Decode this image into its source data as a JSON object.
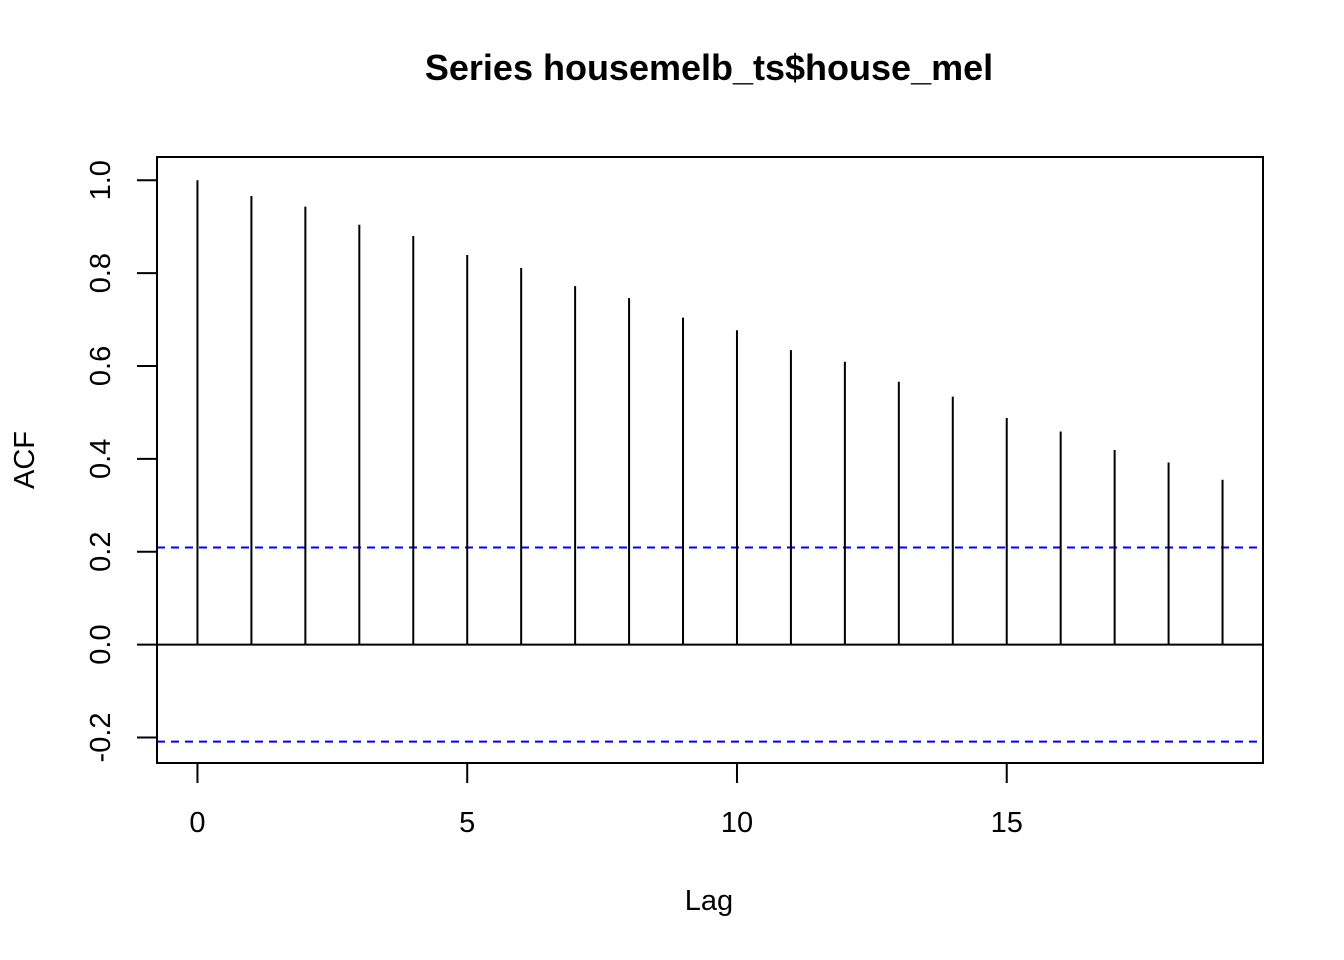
{
  "chart_data": {
    "type": "bar",
    "subtype": "acf-lollipop",
    "title": "Series  housemelb_ts$house_mel",
    "xlabel": "Lag",
    "ylabel": "ACF",
    "xlim": [
      -0.75,
      19.75
    ],
    "ylim": [
      -0.255,
      1.05
    ],
    "x_ticks": [
      0,
      5,
      10,
      15
    ],
    "x_tick_labels": [
      "0",
      "5",
      "10",
      "15"
    ],
    "y_ticks": [
      -0.2,
      0.0,
      0.2,
      0.4,
      0.6,
      0.8,
      1.0
    ],
    "y_tick_labels": [
      "-0.2",
      "0.0",
      "0.2",
      "0.4",
      "0.6",
      "0.8",
      "1.0"
    ],
    "lags": [
      0,
      1,
      2,
      3,
      4,
      5,
      6,
      7,
      8,
      9,
      10,
      11,
      12,
      13,
      14,
      15,
      16,
      17,
      18,
      19
    ],
    "values": [
      1.0,
      0.966,
      0.943,
      0.904,
      0.88,
      0.839,
      0.811,
      0.772,
      0.746,
      0.704,
      0.677,
      0.634,
      0.609,
      0.566,
      0.534,
      0.488,
      0.459,
      0.419,
      0.392,
      0.355
    ],
    "confidence_bounds": [
      0.209,
      -0.209
    ],
    "colors": {
      "bars": "#000000",
      "confidence": "#0000ff",
      "frame": "#000000"
    },
    "grid": false,
    "legend": "none"
  }
}
